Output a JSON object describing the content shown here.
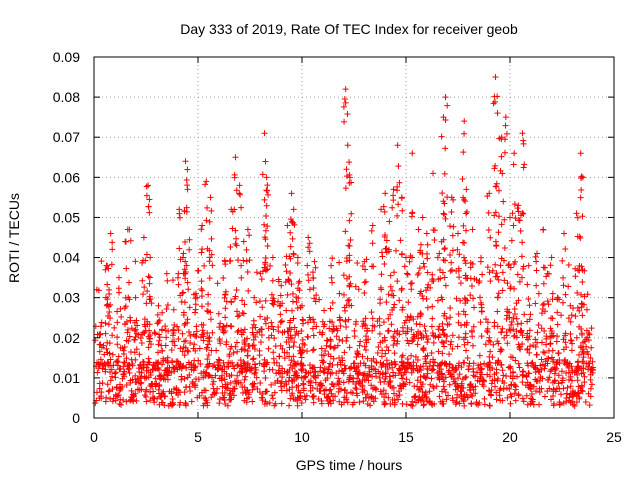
{
  "chart_data": {
    "type": "scatter",
    "title": "Day 333 of 2019, Rate Of TEC Index for receiver geob",
    "xlabel": "GPS time / hours",
    "ylabel": "ROTI / TECUs",
    "xlim": [
      0,
      25
    ],
    "ylim": [
      0,
      0.09
    ],
    "x_ticks": [
      0,
      5,
      10,
      15,
      20,
      25
    ],
    "y_ticks": [
      0,
      0.01,
      0.02,
      0.03,
      0.04,
      0.05,
      0.06,
      0.07,
      0.08,
      0.09
    ],
    "grid": true,
    "marker": "plus",
    "color": "#ff0000",
    "series": [
      {
        "x": [
          0.3,
          0.6,
          0.8,
          1.2,
          1.5,
          1.7,
          2.0,
          2.4,
          2.6,
          2.7,
          3.1,
          3.5,
          3.8,
          4.1,
          4.3,
          4.4,
          4.5,
          4.9,
          5.2,
          5.4,
          5.6,
          6.0,
          6.3,
          6.6,
          6.8,
          7.0,
          7.2,
          7.4,
          7.7,
          8.0,
          8.2,
          8.3,
          8.6,
          9.0,
          9.3,
          9.5,
          9.6,
          9.8,
          10.0,
          10.3,
          10.6,
          11.0,
          11.4,
          11.8,
          12.1,
          12.2,
          12.3,
          12.6,
          13.0,
          13.4,
          13.8,
          14.0,
          14.2,
          14.4,
          14.6,
          14.8,
          15.0,
          15.3,
          15.6,
          15.8,
          16.0,
          16.3,
          16.6,
          16.8,
          16.9,
          17.2,
          17.5,
          17.8,
          17.9,
          18.2,
          18.6,
          19.0,
          19.3,
          19.4,
          19.6,
          19.8,
          20.0,
          20.2,
          20.4,
          20.6,
          20.9,
          21.3,
          21.6,
          21.8,
          22.0,
          22.3,
          22.6,
          22.9,
          23.2,
          23.4,
          23.5,
          23.7,
          23.9
        ],
        "y": [
          0.021,
          0.038,
          0.046,
          0.035,
          0.044,
          0.047,
          0.03,
          0.045,
          0.058,
          0.04,
          0.028,
          0.036,
          0.022,
          0.052,
          0.041,
          0.064,
          0.057,
          0.031,
          0.048,
          0.059,
          0.055,
          0.026,
          0.039,
          0.052,
          0.065,
          0.058,
          0.044,
          0.047,
          0.03,
          0.036,
          0.071,
          0.06,
          0.04,
          0.033,
          0.048,
          0.056,
          0.052,
          0.04,
          0.028,
          0.045,
          0.039,
          0.024,
          0.038,
          0.031,
          0.082,
          0.068,
          0.06,
          0.024,
          0.039,
          0.048,
          0.052,
          0.056,
          0.049,
          0.057,
          0.068,
          0.055,
          0.04,
          0.066,
          0.047,
          0.05,
          0.046,
          0.061,
          0.041,
          0.075,
          0.08,
          0.055,
          0.046,
          0.074,
          0.057,
          0.047,
          0.039,
          0.056,
          0.085,
          0.076,
          0.07,
          0.075,
          0.05,
          0.066,
          0.053,
          0.071,
          0.038,
          0.041,
          0.047,
          0.036,
          0.04,
          0.03,
          0.046,
          0.028,
          0.051,
          0.066,
          0.06,
          0.027,
          0.012
        ]
      }
    ]
  }
}
